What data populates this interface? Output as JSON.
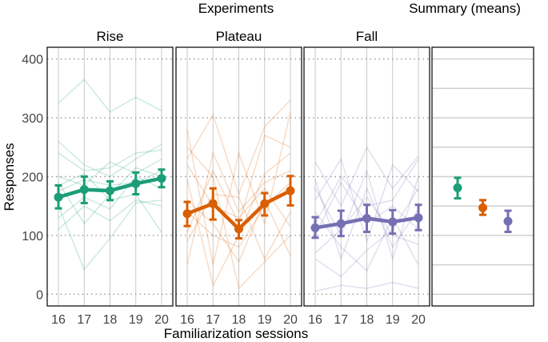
{
  "chart_data": {
    "type": "line",
    "group_titles": {
      "experiments": "Experiments",
      "summary": "Summary (means)"
    },
    "xlabel": "Familiarization sessions",
    "ylabel": "Responses",
    "ylim": [
      -20,
      420
    ],
    "yticks": [
      0,
      100,
      200,
      300,
      400
    ],
    "x": [
      16,
      17,
      18,
      19,
      20
    ],
    "panels": [
      {
        "name": "Rise",
        "color": "#1b9e77",
        "mean": {
          "values": [
            165,
            178,
            176,
            188,
            197
          ],
          "lower": [
            146,
            155,
            160,
            170,
            182
          ],
          "upper": [
            185,
            200,
            192,
            207,
            212
          ]
        },
        "subjects": [
          [
            325,
            365,
            310,
            335,
            312
          ],
          [
            260,
            220,
            200,
            230,
            255
          ],
          [
            240,
            210,
            215,
            240,
            245
          ],
          [
            200,
            185,
            225,
            205,
            230
          ],
          [
            150,
            42,
            95,
            155,
            160
          ],
          [
            110,
            150,
            125,
            160,
            150
          ],
          [
            185,
            205,
            160,
            170,
            105
          ],
          [
            190,
            120,
            170,
            215,
            200
          ],
          [
            130,
            165,
            145,
            200,
            180
          ],
          [
            175,
            195,
            185,
            190,
            210
          ]
        ]
      },
      {
        "name": "Plateau",
        "color": "#d95f02",
        "mean": {
          "values": [
            137,
            154,
            111,
            154,
            176
          ],
          "lower": [
            116,
            127,
            95,
            134,
            151
          ],
          "upper": [
            157,
            180,
            126,
            172,
            201
          ]
        },
        "subjects": [
          [
            280,
            50,
            240,
            120,
            310
          ],
          [
            230,
            305,
            170,
            285,
            330
          ],
          [
            195,
            15,
            100,
            205,
            240
          ],
          [
            105,
            210,
            120,
            270,
            250
          ],
          [
            250,
            200,
            10,
            55,
            100
          ],
          [
            160,
            120,
            55,
            160,
            65
          ],
          [
            90,
            170,
            165,
            60,
            140
          ],
          [
            50,
            240,
            140,
            190,
            210
          ],
          [
            220,
            150,
            130,
            180,
            115
          ],
          [
            140,
            100,
            80,
            150,
            190
          ]
        ]
      },
      {
        "name": "Fall",
        "color": "#7570b3",
        "mean": {
          "values": [
            113,
            120,
            129,
            123,
            130
          ],
          "lower": [
            96,
            99,
            106,
            103,
            109
          ],
          "upper": [
            131,
            142,
            152,
            143,
            152
          ]
        },
        "subjects": [
          [
            225,
            150,
            250,
            180,
            235
          ],
          [
            5,
            15,
            10,
            20,
            10
          ],
          [
            160,
            230,
            90,
            220,
            175
          ],
          [
            60,
            30,
            75,
            110,
            180
          ],
          [
            195,
            60,
            180,
            80,
            145
          ],
          [
            120,
            200,
            150,
            160,
            230
          ],
          [
            70,
            110,
            165,
            100,
            85
          ],
          [
            140,
            80,
            40,
            130,
            50
          ],
          [
            100,
            190,
            120,
            150,
            110
          ],
          [
            180,
            100,
            210,
            60,
            200
          ]
        ]
      }
    ],
    "summary": {
      "points": [
        {
          "name": "Rise",
          "color": "#1b9e77",
          "value": 181,
          "lower": 163,
          "upper": 198
        },
        {
          "name": "Plateau",
          "color": "#d95f02",
          "value": 147,
          "lower": 135,
          "upper": 160
        },
        {
          "name": "Fall",
          "color": "#7570b3",
          "value": 124,
          "lower": 106,
          "upper": 142
        }
      ]
    }
  }
}
